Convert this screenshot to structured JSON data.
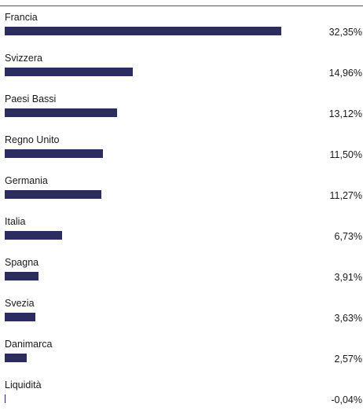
{
  "chart_data": {
    "type": "bar",
    "orientation": "horizontal",
    "categories": [
      "Francia",
      "Svizzera",
      "Paesi Bassi",
      "Regno Unito",
      "Germania",
      "Italia",
      "Spagna",
      "Svezia",
      "Danimarca",
      "Liquidità"
    ],
    "values": [
      32.35,
      14.96,
      13.12,
      11.5,
      11.27,
      6.73,
      3.91,
      3.63,
      2.57,
      -0.04
    ],
    "value_labels": [
      "32,35%",
      "14,96%",
      "13,12%",
      "11,50%",
      "11,27%",
      "6,73%",
      "3,91%",
      "3,63%",
      "2,57%",
      "-0,04%"
    ],
    "title": "",
    "xlabel": "",
    "ylabel": "",
    "xlim": [
      0,
      32.35
    ],
    "grid": false,
    "legend": "none",
    "bar_color": "#2b2c5f"
  }
}
